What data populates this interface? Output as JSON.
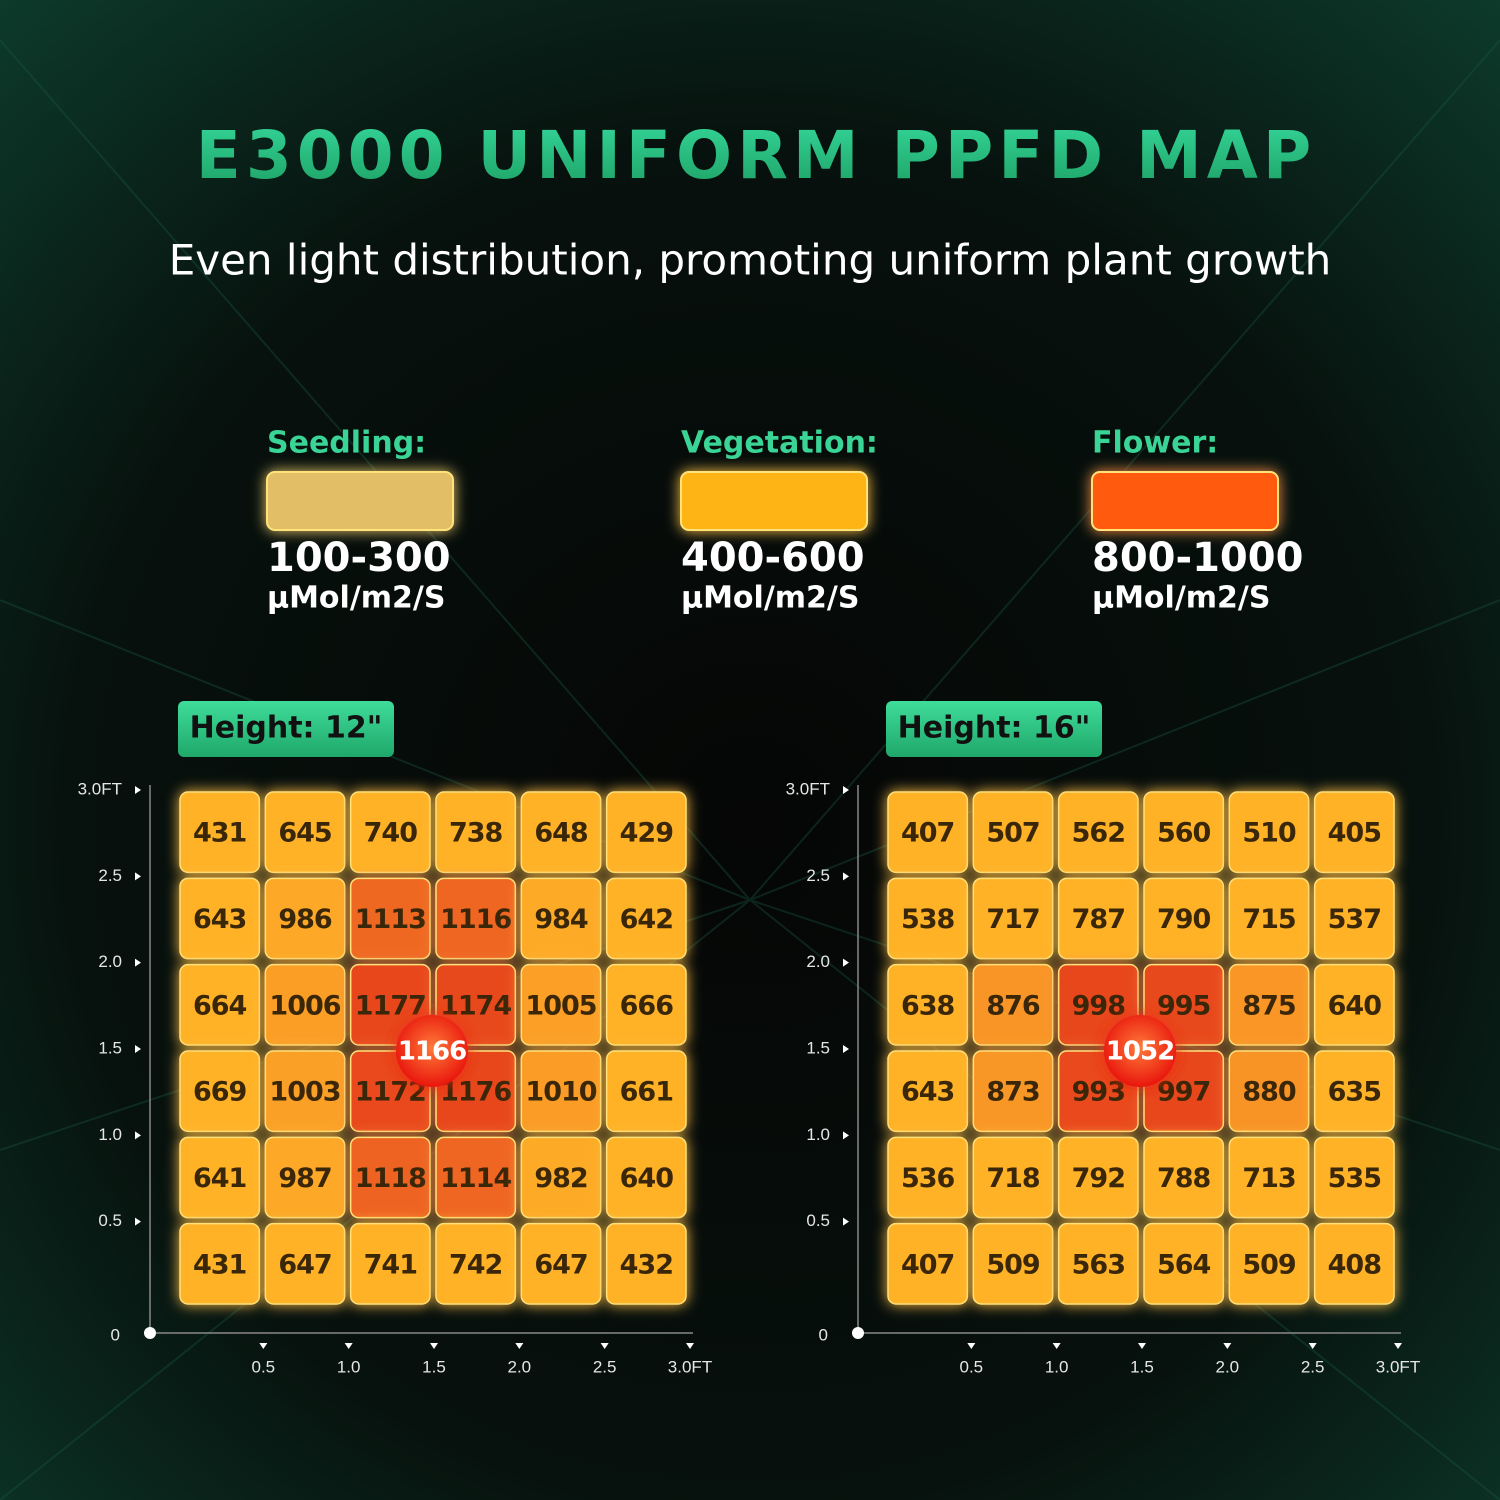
{
  "title": "E3000 UNIFORM PPFD MAP",
  "subtitle": "Even light distribution, promoting uniform plant growth",
  "legend": [
    {
      "name": "Seedling:",
      "color": "#e2be66",
      "range": "100-300",
      "unit": "µMol/m2/S"
    },
    {
      "name": "Vegetation:",
      "color": "#ffb414",
      "range": "400-600",
      "unit": "µMol/m2/S"
    },
    {
      "name": "Flower:",
      "color": "#ff5a0a",
      "range": "800-1000",
      "unit": "µMol/m2/S"
    }
  ],
  "chart_data": [
    {
      "type": "heatmap",
      "title": "Height: 12\"",
      "xlim": [
        0,
        3
      ],
      "ylim": [
        0,
        3
      ],
      "xticks": [
        0.5,
        {
          "value": 1,
          "label": "1.0"
        },
        1.5,
        {
          "value": 2,
          "label": "2.0"
        },
        2.5,
        {
          "value": 3,
          "label": "3.0FT"
        }
      ],
      "yticks": [
        0,
        0.5,
        {
          "value": 1,
          "label": "1.0"
        },
        1.5,
        {
          "value": 2,
          "label": "2.0"
        },
        2.5,
        {
          "value": 3,
          "label": "3.0FT"
        }
      ],
      "values": [
        [
          431,
          645,
          740,
          738,
          648,
          429
        ],
        [
          643,
          986,
          1113,
          1116,
          984,
          642
        ],
        [
          664,
          1006,
          1177,
          1174,
          1005,
          666
        ],
        [
          669,
          1003,
          1172,
          1176,
          1010,
          661
        ],
        [
          641,
          987,
          1118,
          1114,
          982,
          640
        ],
        [
          431,
          647,
          741,
          742,
          647,
          432
        ]
      ],
      "center": 1166
    },
    {
      "type": "heatmap",
      "title": "Height: 16\"",
      "xlim": [
        0,
        3
      ],
      "ylim": [
        0,
        3
      ],
      "xticks": [
        0.5,
        {
          "value": 1,
          "label": "1.0"
        },
        1.5,
        {
          "value": 2,
          "label": "2.0"
        },
        2.5,
        {
          "value": 3,
          "label": "3.0FT"
        }
      ],
      "yticks": [
        0,
        0.5,
        {
          "value": 1,
          "label": "1.0"
        },
        1.5,
        {
          "value": 2,
          "label": "2.0"
        },
        2.5,
        {
          "value": 3,
          "label": "3.0FT"
        }
      ],
      "values": [
        [
          407,
          507,
          562,
          560,
          510,
          405
        ],
        [
          538,
          717,
          787,
          790,
          715,
          537
        ],
        [
          638,
          876,
          998,
          995,
          875,
          640
        ],
        [
          643,
          873,
          993,
          997,
          880,
          635
        ],
        [
          536,
          718,
          792,
          788,
          713,
          535
        ],
        [
          407,
          509,
          563,
          564,
          509,
          408
        ]
      ],
      "center": 1052
    }
  ]
}
